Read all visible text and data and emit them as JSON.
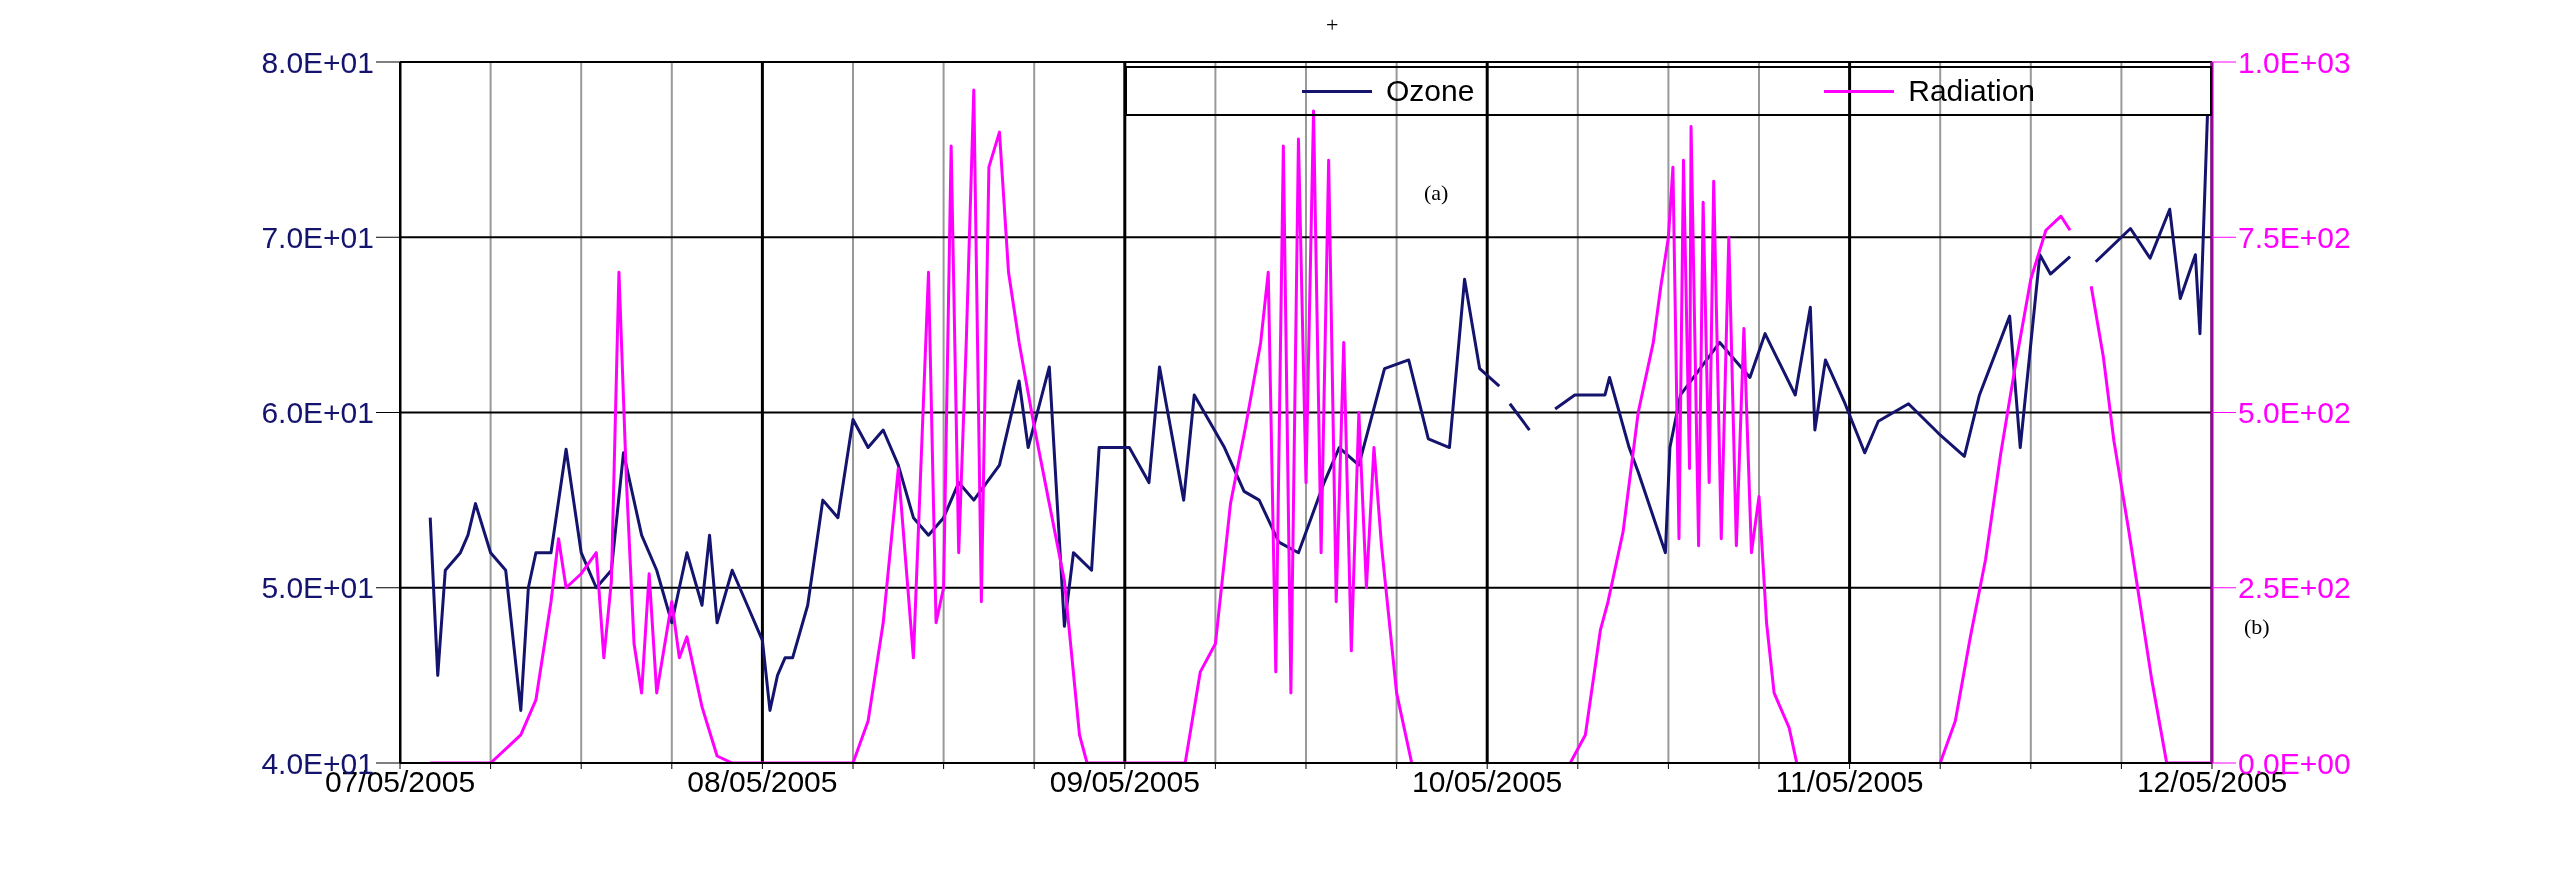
{
  "chart_data": {
    "type": "line",
    "annotations": [
      "+",
      "(a)",
      "(b)"
    ],
    "series": [
      {
        "name": "Ozone",
        "color": "#14146e",
        "x": [
          "2005-05-07T02:00",
          "2005-05-07T02:30",
          "2005-05-07T03:00",
          "2005-05-07T04:00",
          "2005-05-07T04:30",
          "2005-05-07T05:00",
          "2005-05-07T06:00",
          "2005-05-07T07:00",
          "2005-05-07T07:30",
          "2005-05-07T08:00",
          "2005-05-07T08:30",
          "2005-05-07T09:00",
          "2005-05-07T10:00",
          "2005-05-07T11:00",
          "2005-05-07T12:00",
          "2005-05-07T13:00",
          "2005-05-07T14:00",
          "2005-05-07T14:48",
          "2005-05-07T16:00",
          "2005-05-07T17:00",
          "2005-05-07T18:00",
          "2005-05-07T19:00",
          "2005-05-07T20:00",
          "2005-05-07T20:30",
          "2005-05-07T21:00",
          "2005-05-07T22:00",
          "2005-05-07T23:00",
          "2005-05-08T00:00",
          "2005-05-08T00:30",
          "2005-05-08T01:00",
          "2005-05-08T01:30",
          "2005-05-08T02:00",
          "2005-05-08T03:00",
          "2005-05-08T04:00",
          "2005-05-08T05:00",
          "2005-05-08T06:00",
          "2005-05-08T07:00",
          "2005-05-08T08:00",
          "2005-05-08T09:00",
          "2005-05-08T10:00",
          "2005-05-08T11:00",
          "2005-05-08T12:00",
          "2005-05-08T13:00",
          "2005-05-08T14:00",
          "2005-05-08T15:42",
          "2005-05-08T17:00",
          "2005-05-08T17:36",
          "2005-05-08T19:00",
          "2005-05-08T20:00",
          "2005-05-08T20:36",
          "2005-05-08T21:48",
          "2005-05-08T22:18",
          "2005-05-09T00:18",
          "2005-05-09T01:36",
          "2005-05-09T02:18",
          "2005-05-09T03:54",
          "2005-05-09T04:36",
          "2005-05-09T06:36",
          "2005-05-09T07:54",
          "2005-05-09T08:54",
          "2005-05-09T10:12",
          "2005-05-09T11:30",
          "2005-05-09T13:12",
          "2005-05-09T14:12",
          "2005-05-09T15:30",
          "2005-05-09T17:12",
          "2005-05-09T18:48",
          "2005-05-09T20:06",
          "2005-05-09T21:30",
          "2005-05-09T22:30",
          "2005-05-09T23:30",
          "2005-05-10T00:48",
          "2005-05-10T01:06",
          "2005-05-10T01:30",
          "2005-05-10T02:48",
          "2005-05-10T03:30",
          "2005-05-10T04:30",
          "2005-05-10T05:48",
          "2005-05-10T07:48",
          "2005-05-10T08:06",
          "2005-05-10T09:24",
          "2005-05-10T10:00",
          "2005-05-10T11:48",
          "2005-05-10T12:06",
          "2005-05-10T12:48",
          "2005-05-10T15:24",
          "2005-05-10T17:24",
          "2005-05-10T18:24",
          "2005-05-10T20:24",
          "2005-05-10T21:24",
          "2005-05-10T21:42",
          "2005-05-10T22:24",
          "2005-05-10T23:42",
          "2005-05-11T01:00",
          "2005-05-11T01:54",
          "2005-05-11T03:54",
          "2005-05-11T05:54",
          "2005-05-11T07:36",
          "2005-05-11T08:36",
          "2005-05-11T10:36",
          "2005-05-11T11:18",
          "2005-05-11T12:36",
          "2005-05-11T13:18",
          "2005-05-11T14:36",
          "2005-05-11T15:30",
          "2005-05-11T16:18",
          "2005-05-11T18:36",
          "2005-05-11T19:54",
          "2005-05-11T21:12",
          "2005-05-11T21:54",
          "2005-05-11T22:54",
          "2005-05-11T23:12",
          "2005-05-11T23:42"
        ],
        "values": [
          54,
          45,
          51,
          52,
          53,
          54.8,
          52,
          51,
          47,
          43,
          50,
          52,
          52,
          57.9,
          52,
          50,
          51,
          57.7,
          53,
          51,
          48,
          52,
          49,
          53,
          48,
          51,
          49,
          47,
          43,
          45,
          46,
          46,
          49,
          55,
          54,
          59.6,
          58,
          59,
          57,
          54,
          53,
          54,
          56,
          55,
          57,
          61.8,
          58,
          62.6,
          47.8,
          52,
          51,
          58,
          58,
          56,
          62.6,
          55,
          61,
          58,
          55.5,
          55,
          52.6,
          52,
          56,
          58,
          57,
          62.5,
          63,
          58.5,
          58,
          67.6,
          62.5,
          61.5,
          null,
          60.5,
          59,
          null,
          60.2,
          61,
          61,
          62,
          58,
          56.6,
          52,
          58,
          61,
          64,
          62,
          64.5,
          61,
          66,
          59,
          63,
          60.5,
          57.7,
          59.5,
          60.5,
          58.8,
          57.5,
          61,
          65.5,
          58,
          69,
          67.9,
          68.9,
          null,
          68.6,
          70.5,
          68.8,
          71.6,
          66.5,
          69,
          64.5,
          77
        ]
      },
      {
        "name": "Radiation",
        "color": "#ff00ff",
        "axis": "y2",
        "x": [
          "2005-05-07T02:00",
          "2005-05-07T06:00",
          "2005-05-07T08:00",
          "2005-05-07T09:00",
          "2005-05-07T10:00",
          "2005-05-07T10:30",
          "2005-05-07T11:00",
          "2005-05-07T12:00",
          "2005-05-07T13:00",
          "2005-05-07T13:30",
          "2005-05-07T14:00",
          "2005-05-07T14:30",
          "2005-05-07T15:00",
          "2005-05-07T15:30",
          "2005-05-07T16:00",
          "2005-05-07T16:30",
          "2005-05-07T17:00",
          "2005-05-07T18:00",
          "2005-05-07T18:30",
          "2005-05-07T19:00",
          "2005-05-07T20:00",
          "2005-05-07T21:00",
          "2005-05-07T22:00",
          "2005-05-08T06:00",
          "2005-05-08T07:00",
          "2005-05-08T08:00",
          "2005-05-08T09:00",
          "2005-05-08T10:00",
          "2005-05-08T11:00",
          "2005-05-08T11:30",
          "2005-05-08T12:00",
          "2005-05-08T12:30",
          "2005-05-08T13:00",
          "2005-05-08T13:30",
          "2005-05-08T14:00",
          "2005-05-08T14:30",
          "2005-05-08T15:00",
          "2005-05-08T15:42",
          "2005-05-08T16:18",
          "2005-05-08T17:00",
          "2005-05-08T18:00",
          "2005-05-08T19:00",
          "2005-05-08T20:00",
          "2005-05-08T21:00",
          "2005-05-08T21:30",
          "2005-05-09T04:00",
          "2005-05-09T05:00",
          "2005-05-09T06:00",
          "2005-05-09T07:00",
          "2005-05-09T08:00",
          "2005-05-09T09:00",
          "2005-05-09T09:30",
          "2005-05-09T10:00",
          "2005-05-09T10:30",
          "2005-05-09T11:00",
          "2005-05-09T11:30",
          "2005-05-09T12:00",
          "2005-05-09T12:30",
          "2005-05-09T13:00",
          "2005-05-09T13:30",
          "2005-05-09T14:00",
          "2005-05-09T14:30",
          "2005-05-09T15:00",
          "2005-05-09T15:30",
          "2005-05-09T16:00",
          "2005-05-09T16:30",
          "2005-05-09T17:00",
          "2005-05-09T18:00",
          "2005-05-09T19:00",
          "2005-05-09T20:00",
          "2005-05-10T04:00",
          "2005-05-10T05:30",
          "2005-05-10T06:30",
          "2005-05-10T07:30",
          "2005-05-10T08:00",
          "2005-05-10T09:00",
          "2005-05-10T10:00",
          "2005-05-10T11:00",
          "2005-05-10T11:30",
          "2005-05-10T12:00",
          "2005-05-10T12:18",
          "2005-05-10T12:42",
          "2005-05-10T13:00",
          "2005-05-10T13:24",
          "2005-05-10T13:30",
          "2005-05-10T14:00",
          "2005-05-10T14:18",
          "2005-05-10T14:42",
          "2005-05-10T15:00",
          "2005-05-10T15:30",
          "2005-05-10T16:00",
          "2005-05-10T16:30",
          "2005-05-10T17:00",
          "2005-05-10T17:30",
          "2005-05-10T18:00",
          "2005-05-10T18:30",
          "2005-05-10T19:00",
          "2005-05-10T20:00",
          "2005-05-10T20:30",
          "2005-05-10T21:00",
          "2005-05-11T05:00",
          "2005-05-11T06:00",
          "2005-05-11T07:00",
          "2005-05-11T08:00",
          "2005-05-11T09:00",
          "2005-05-11T10:00",
          "2005-05-11T11:00",
          "2005-05-11T12:00",
          "2005-05-11T13:00",
          "2005-05-11T14:00",
          "2005-05-11T14:36",
          "2005-05-11T15:30",
          "2005-05-11T16:00",
          "2005-05-11T16:48",
          "2005-05-11T17:30",
          "2005-05-11T18:30",
          "2005-05-11T19:00",
          "2005-05-11T20:00",
          "2005-05-11T21:00",
          "2005-05-12T00:00"
        ],
        "values": [
          0,
          0,
          40,
          90,
          230,
          320,
          250,
          270,
          300,
          150,
          260,
          700,
          400,
          170,
          100,
          270,
          100,
          230,
          150,
          180,
          80,
          10,
          0,
          0,
          60,
          200,
          420,
          150,
          700,
          200,
          250,
          880,
          300,
          600,
          960,
          230,
          850,
          900,
          700,
          600,
          480,
          370,
          260,
          40,
          0,
          0,
          130,
          170,
          370,
          480,
          600,
          700,
          130,
          880,
          100,
          890,
          400,
          930,
          300,
          860,
          230,
          600,
          160,
          500,
          250,
          450,
          310,
          100,
          0,
          null,
          null,
          0,
          40,
          190,
          230,
          330,
          500,
          600,
          680,
          750,
          850,
          320,
          860,
          420,
          908,
          310,
          800,
          400,
          830,
          320,
          750,
          310,
          620,
          300,
          380,
          200,
          100,
          50,
          0,
          null,
          null,
          0,
          60,
          180,
          290,
          440,
          570,
          690,
          760,
          780,
          760,
          null,
          680,
          580,
          460,
          330,
          260,
          120,
          0,
          0
        ]
      }
    ],
    "xlim": [
      "2005-05-07",
      "2005-05-12"
    ],
    "xticks": [
      {
        "value": "2005-05-07",
        "label": "07/05/2005"
      },
      {
        "value": "2005-05-07T06:00",
        "label": null
      },
      {
        "value": "2005-05-07T12:00",
        "label": null
      },
      {
        "value": "2005-05-07T18:00",
        "label": null
      },
      {
        "value": "2005-05-08",
        "label": "08/05/2005"
      },
      {
        "value": "2005-05-08T06:00",
        "label": null
      },
      {
        "value": "2005-05-08T12:00",
        "label": null
      },
      {
        "value": "2005-05-08T18:00",
        "label": null
      },
      {
        "value": "2005-05-09",
        "label": "09/05/2005"
      },
      {
        "value": "2005-05-09T06:00",
        "label": null
      },
      {
        "value": "2005-05-09T12:00",
        "label": null
      },
      {
        "value": "2005-05-09T18:00",
        "label": null
      },
      {
        "value": "2005-05-10",
        "label": "10/05/2005"
      },
      {
        "value": "2005-05-10T06:00",
        "label": null
      },
      {
        "value": "2005-05-10T12:00",
        "label": null
      },
      {
        "value": "2005-05-10T18:00",
        "label": null
      },
      {
        "value": "2005-05-11",
        "label": "11/05/2005"
      },
      {
        "value": "2005-05-11T06:00",
        "label": null
      },
      {
        "value": "2005-05-11T12:00",
        "label": null
      },
      {
        "value": "2005-05-11T18:00",
        "label": null
      },
      {
        "value": "2005-05-12",
        "label": "12/05/2005"
      }
    ],
    "ylim": [
      40,
      80
    ],
    "yticks": [
      {
        "value": 40,
        "label": "4.0E+01"
      },
      {
        "value": 50,
        "label": "5.0E+01"
      },
      {
        "value": 60,
        "label": "6.0E+01"
      },
      {
        "value": 70,
        "label": "7.0E+01"
      },
      {
        "value": 80,
        "label": "8.0E+01"
      }
    ],
    "y2lim": [
      0,
      1000
    ],
    "y2ticks": [
      {
        "value": 0,
        "label": "0.0E+00"
      },
      {
        "value": 250,
        "label": "2.5E+02"
      },
      {
        "value": 500,
        "label": "5.0E+02"
      },
      {
        "value": 750,
        "label": "7.5E+02"
      },
      {
        "value": 1000,
        "label": "1.0E+03"
      }
    ],
    "grid": true,
    "legend": "top right",
    "marker": "none",
    "line_style": "solid"
  }
}
